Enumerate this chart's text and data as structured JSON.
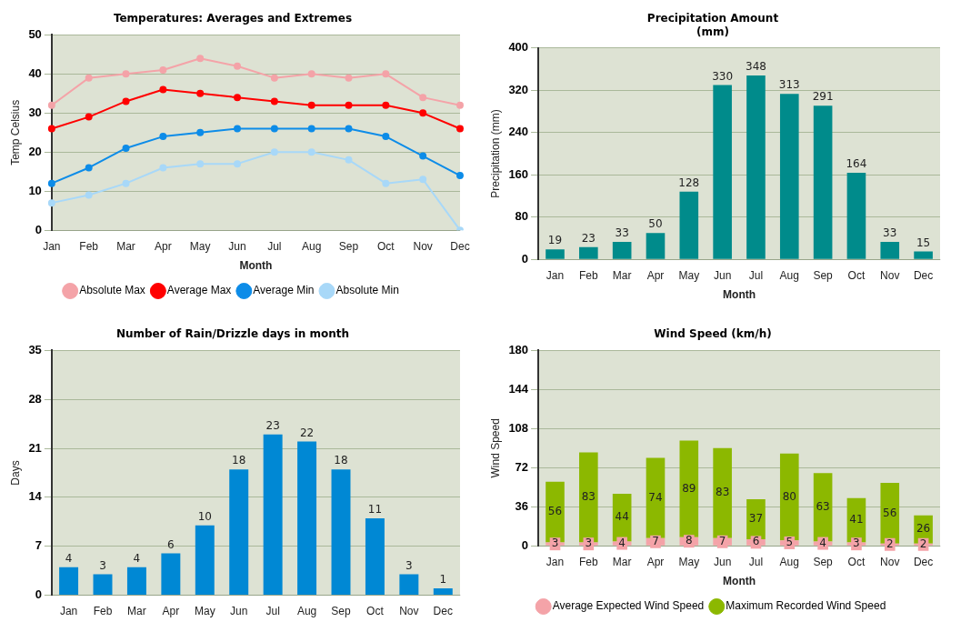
{
  "chart_data": [
    {
      "type": "line",
      "title": "Temperatures: Averages and Extremes",
      "xlabel": "Month",
      "ylabel": "Temp Celsius",
      "categories": [
        "Jan",
        "Feb",
        "Mar",
        "Apr",
        "May",
        "Jun",
        "Jul",
        "Aug",
        "Sep",
        "Oct",
        "Nov",
        "Dec"
      ],
      "series": [
        {
          "name": "Absolute Max",
          "color": "#f4a3a8",
          "values": [
            32,
            39,
            40,
            41,
            44,
            42,
            39,
            40,
            39,
            40,
            34,
            32
          ]
        },
        {
          "name": "Average Max",
          "color": "#ff0000",
          "values": [
            26,
            29,
            33,
            36,
            35,
            34,
            33,
            32,
            32,
            32,
            30,
            26
          ]
        },
        {
          "name": "Average Min",
          "color": "#0d8ce8",
          "values": [
            12,
            16,
            21,
            24,
            25,
            26,
            26,
            26,
            26,
            24,
            19,
            14
          ]
        },
        {
          "name": "Absolute Min",
          "color": "#a8d8f8",
          "values": [
            7,
            9,
            12,
            16,
            17,
            17,
            20,
            20,
            18,
            12,
            13,
            0
          ]
        }
      ],
      "ylim": [
        0,
        50
      ],
      "yticks": [
        0,
        10,
        20,
        30,
        40,
        50
      ],
      "grid": "y",
      "legend": "bottom",
      "marker": "circle"
    },
    {
      "type": "bar",
      "title": "Precipitation Amount\n(mm)",
      "xlabel": "Month",
      "ylabel": "Precipitation (mm)",
      "categories": [
        "Jan",
        "Feb",
        "Mar",
        "Apr",
        "May",
        "Jun",
        "Jul",
        "Aug",
        "Sep",
        "Oct",
        "Nov",
        "Dec"
      ],
      "values": [
        19,
        23,
        33,
        50,
        128,
        330,
        348,
        313,
        291,
        164,
        33,
        15
      ],
      "color": "#008b8b",
      "ylim": [
        0,
        400
      ],
      "yticks": [
        0,
        80,
        160,
        240,
        320,
        400
      ],
      "grid": "y",
      "data_labels": true
    },
    {
      "type": "bar",
      "title": "Number of Rain/Drizzle days in month",
      "ylabel": "Days",
      "categories": [
        "Jan",
        "Feb",
        "Mar",
        "Apr",
        "May",
        "Jun",
        "Jul",
        "Aug",
        "Sep",
        "Oct",
        "Nov",
        "Dec"
      ],
      "values": [
        4,
        3,
        4,
        6,
        10,
        18,
        23,
        22,
        18,
        11,
        3,
        1
      ],
      "color": "#0088d4",
      "ylim": [
        0,
        35
      ],
      "yticks": [
        0,
        7,
        14,
        21,
        28,
        35
      ],
      "grid": "y",
      "data_labels": true
    },
    {
      "type": "bar",
      "title": "Wind Speed (km/h)",
      "xlabel": "Month",
      "ylabel": "Wind Speed",
      "categories": [
        "Jan",
        "Feb",
        "Mar",
        "Apr",
        "May",
        "Jun",
        "Jul",
        "Aug",
        "Sep",
        "Oct",
        "Nov",
        "Dec"
      ],
      "series": [
        {
          "name": "Average Expected Wind Speed",
          "color": "#f4a3a8",
          "values": [
            3,
            3,
            4,
            7,
            8,
            7,
            6,
            5,
            4,
            3,
            2,
            2
          ]
        },
        {
          "name": "Maximum Recorded Wind Speed",
          "color": "#8cb800",
          "values": [
            56,
            83,
            44,
            74,
            89,
            83,
            37,
            80,
            63,
            41,
            56,
            26
          ]
        }
      ],
      "stacked": true,
      "ylim": [
        0,
        180
      ],
      "yticks": [
        0,
        36,
        72,
        108,
        144,
        180
      ],
      "grid": "y",
      "legend": "bottom",
      "data_labels": true
    }
  ]
}
